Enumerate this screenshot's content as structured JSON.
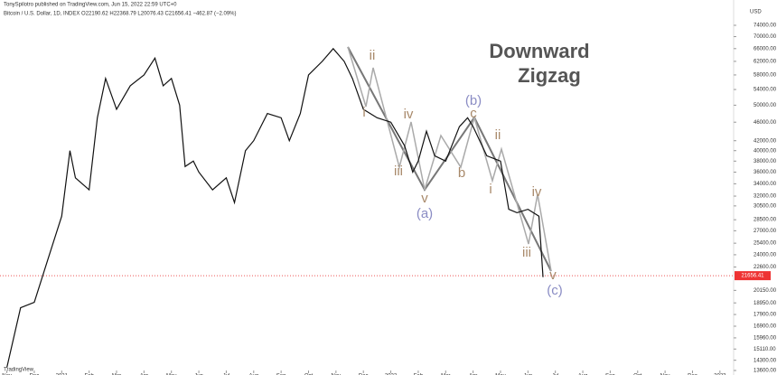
{
  "header": {
    "author": "TonySpilotro published on TradingView.com, Jun 15, 2022 22:59 UTC+0",
    "symbol": "Bitcoin / U.S. Dollar, 1D, INDEX  O22190.62  H22368.79  L20076.43  C21656.41  −462.87 (−2.09%)"
  },
  "chart_data": {
    "type": "line",
    "title": "Downward",
    "subtitle": "Zigzag",
    "y_axis_label": "USD",
    "log_scale": true,
    "color": "#111111",
    "x": [
      0,
      0.5,
      1,
      1.5,
      2,
      2.3,
      2.5,
      3,
      3.3,
      3.6,
      4,
      4.5,
      5,
      5.4,
      5.7,
      6,
      6.3,
      6.5,
      6.8,
      7,
      7.5,
      8,
      8.3,
      8.7,
      9,
      9.5,
      10,
      10.3,
      10.7,
      11,
      11.5,
      11.9,
      12.3,
      12.6,
      13,
      13.5,
      14,
      14.5,
      14.8,
      15,
      15.3,
      15.6,
      16,
      16.5,
      16.8,
      17,
      17.5,
      18,
      18.3,
      18.6,
      19,
      19.4,
      19.55
    ],
    "values": [
      13800,
      18500,
      19000,
      23500,
      29000,
      40000,
      35000,
      33000,
      47000,
      57000,
      49000,
      55000,
      58000,
      63000,
      55000,
      57000,
      50000,
      37000,
      38000,
      36000,
      33000,
      35000,
      31000,
      40000,
      42000,
      48000,
      47000,
      42000,
      48000,
      58000,
      62000,
      66000,
      62000,
      57000,
      49000,
      47000,
      46000,
      41000,
      36000,
      38000,
      44000,
      39000,
      38000,
      45000,
      47000,
      45000,
      39000,
      38000,
      30000,
      29500,
      30000,
      29000,
      21500
    ],
    "last_price": {
      "value": 21656.41,
      "label": "21656.41"
    },
    "ylim": [
      13600,
      74000
    ],
    "yticks": [
      {
        "value": 74000,
        "label": "74000.00"
      },
      {
        "value": 70000,
        "label": "70000.00"
      },
      {
        "value": 66000,
        "label": "66000.00"
      },
      {
        "value": 62000,
        "label": "62000.00"
      },
      {
        "value": 58000,
        "label": "58000.00"
      },
      {
        "value": 54000,
        "label": "54000.00"
      },
      {
        "value": 50000,
        "label": "50000.00"
      },
      {
        "value": 46000,
        "label": "46000.00"
      },
      {
        "value": 42000,
        "label": "42000.00"
      },
      {
        "value": 40000,
        "label": "40000.00"
      },
      {
        "value": 38000,
        "label": "38000.00"
      },
      {
        "value": 36000,
        "label": "36000.00"
      },
      {
        "value": 34000,
        "label": "34000.00"
      },
      {
        "value": 32000,
        "label": "32000.00"
      },
      {
        "value": 30500,
        "label": "30500.00"
      },
      {
        "value": 28500,
        "label": "28500.00"
      },
      {
        "value": 27000,
        "label": "27000.00"
      },
      {
        "value": 25400,
        "label": "25400.00"
      },
      {
        "value": 24000,
        "label": "24000.00"
      },
      {
        "value": 22600,
        "label": "22600.00"
      },
      {
        "value": 20150,
        "label": "20150.00"
      },
      {
        "value": 18950,
        "label": "18950.00"
      },
      {
        "value": 17900,
        "label": "17900.00"
      },
      {
        "value": 16900,
        "label": "16900.00"
      },
      {
        "value": 15960,
        "label": "15960.00"
      },
      {
        "value": 15110,
        "label": "15110.00"
      },
      {
        "value": 14300,
        "label": "14300.00"
      },
      {
        "value": 13600,
        "label": "13600.00"
      }
    ],
    "xlim": [
      -0.25,
      26.5
    ],
    "xticks": [
      {
        "value": 0,
        "label": "Nov"
      },
      {
        "value": 1,
        "label": "Dec"
      },
      {
        "value": 2,
        "label": "2021"
      },
      {
        "value": 3,
        "label": "Feb"
      },
      {
        "value": 4,
        "label": "Mar"
      },
      {
        "value": 5,
        "label": "Apr"
      },
      {
        "value": 6,
        "label": "May"
      },
      {
        "value": 7,
        "label": "Jun"
      },
      {
        "value": 8,
        "label": "Jul"
      },
      {
        "value": 9,
        "label": "Aug"
      },
      {
        "value": 10,
        "label": "Sep"
      },
      {
        "value": 11,
        "label": "Oct"
      },
      {
        "value": 12,
        "label": "Nov"
      },
      {
        "value": 13,
        "label": "Dec"
      },
      {
        "value": 14,
        "label": "2022"
      },
      {
        "value": 15,
        "label": "Feb"
      },
      {
        "value": 16,
        "label": "Mar"
      },
      {
        "value": 17,
        "label": "Apr"
      },
      {
        "value": 18,
        "label": "May"
      },
      {
        "value": 19,
        "label": "Jun"
      },
      {
        "value": 20,
        "label": "Jul"
      },
      {
        "value": 21,
        "label": "Aug"
      },
      {
        "value": 22,
        "label": "Sep"
      },
      {
        "value": 23,
        "label": "Oct"
      },
      {
        "value": 24,
        "label": "Nov"
      },
      {
        "value": 25,
        "label": "Dec"
      },
      {
        "value": 26,
        "label": "2023"
      }
    ],
    "annotations": [
      "ii",
      "i",
      "iv",
      "iii",
      "v",
      "(a)",
      "(b)",
      "c",
      "b",
      "ii",
      "i",
      "iv",
      "iii",
      "v",
      "(c)"
    ]
  },
  "footer": "TradingView"
}
